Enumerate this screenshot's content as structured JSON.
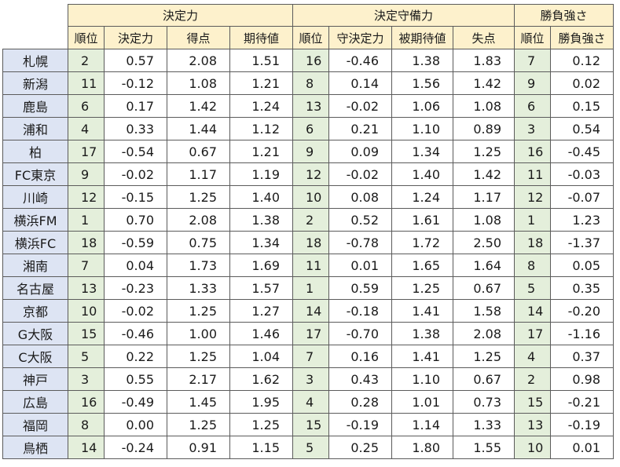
{
  "groups": {
    "finishing": "決定力",
    "defense": "決定守備力",
    "strength": "勝負強さ"
  },
  "subheaders": {
    "rank1": "順位",
    "finishing": "決定力",
    "goals": "得点",
    "expected": "期待値",
    "rank2": "順位",
    "def_finishing": "守決定力",
    "expected_against": "被期待値",
    "conceded": "失点",
    "rank3": "順位",
    "strength": "勝負強さ"
  },
  "rows": [
    {
      "team": "札幌",
      "r1": "2",
      "fin": "0.57",
      "goals": "2.08",
      "exp": "1.51",
      "r2": "16",
      "dfin": "-0.46",
      "xga": "1.38",
      "ga": "1.83",
      "r3": "7",
      "str": "0.12"
    },
    {
      "team": "新潟",
      "r1": "11",
      "fin": "-0.12",
      "goals": "1.08",
      "exp": "1.21",
      "r2": "8",
      "dfin": "0.14",
      "xga": "1.56",
      "ga": "1.42",
      "r3": "9",
      "str": "0.02"
    },
    {
      "team": "鹿島",
      "r1": "6",
      "fin": "0.17",
      "goals": "1.42",
      "exp": "1.24",
      "r2": "13",
      "dfin": "-0.02",
      "xga": "1.06",
      "ga": "1.08",
      "r3": "6",
      "str": "0.15"
    },
    {
      "team": "浦和",
      "r1": "4",
      "fin": "0.33",
      "goals": "1.44",
      "exp": "1.12",
      "r2": "6",
      "dfin": "0.21",
      "xga": "1.10",
      "ga": "0.89",
      "r3": "3",
      "str": "0.54"
    },
    {
      "team": "柏",
      "r1": "17",
      "fin": "-0.54",
      "goals": "0.67",
      "exp": "1.21",
      "r2": "9",
      "dfin": "0.09",
      "xga": "1.34",
      "ga": "1.25",
      "r3": "16",
      "str": "-0.45"
    },
    {
      "team": "FC東京",
      "r1": "9",
      "fin": "-0.02",
      "goals": "1.17",
      "exp": "1.19",
      "r2": "12",
      "dfin": "-0.02",
      "xga": "1.40",
      "ga": "1.42",
      "r3": "11",
      "str": "-0.03"
    },
    {
      "team": "川崎",
      "r1": "12",
      "fin": "-0.15",
      "goals": "1.25",
      "exp": "1.40",
      "r2": "10",
      "dfin": "0.08",
      "xga": "1.24",
      "ga": "1.17",
      "r3": "12",
      "str": "-0.07"
    },
    {
      "team": "横浜FM",
      "r1": "1",
      "fin": "0.70",
      "goals": "2.08",
      "exp": "1.38",
      "r2": "2",
      "dfin": "0.52",
      "xga": "1.61",
      "ga": "1.08",
      "r3": "1",
      "str": "1.23"
    },
    {
      "team": "横浜FC",
      "r1": "18",
      "fin": "-0.59",
      "goals": "0.75",
      "exp": "1.34",
      "r2": "18",
      "dfin": "-0.78",
      "xga": "1.72",
      "ga": "2.50",
      "r3": "18",
      "str": "-1.37"
    },
    {
      "team": "湘南",
      "r1": "7",
      "fin": "0.04",
      "goals": "1.73",
      "exp": "1.69",
      "r2": "11",
      "dfin": "0.01",
      "xga": "1.65",
      "ga": "1.64",
      "r3": "8",
      "str": "0.05"
    },
    {
      "team": "名古屋",
      "r1": "13",
      "fin": "-0.23",
      "goals": "1.33",
      "exp": "1.57",
      "r2": "1",
      "dfin": "0.59",
      "xga": "1.25",
      "ga": "0.67",
      "r3": "5",
      "str": "0.35"
    },
    {
      "team": "京都",
      "r1": "10",
      "fin": "-0.02",
      "goals": "1.25",
      "exp": "1.27",
      "r2": "14",
      "dfin": "-0.18",
      "xga": "1.41",
      "ga": "1.58",
      "r3": "14",
      "str": "-0.20"
    },
    {
      "team": "G大阪",
      "r1": "15",
      "fin": "-0.46",
      "goals": "1.00",
      "exp": "1.46",
      "r2": "17",
      "dfin": "-0.70",
      "xga": "1.38",
      "ga": "2.08",
      "r3": "17",
      "str": "-1.16"
    },
    {
      "team": "C大阪",
      "r1": "5",
      "fin": "0.22",
      "goals": "1.25",
      "exp": "1.04",
      "r2": "7",
      "dfin": "0.16",
      "xga": "1.41",
      "ga": "1.25",
      "r3": "4",
      "str": "0.37"
    },
    {
      "team": "神戸",
      "r1": "3",
      "fin": "0.55",
      "goals": "2.17",
      "exp": "1.62",
      "r2": "3",
      "dfin": "0.43",
      "xga": "1.10",
      "ga": "0.67",
      "r3": "2",
      "str": "0.98"
    },
    {
      "team": "広島",
      "r1": "16",
      "fin": "-0.49",
      "goals": "1.45",
      "exp": "1.95",
      "r2": "4",
      "dfin": "0.28",
      "xga": "1.01",
      "ga": "0.73",
      "r3": "15",
      "str": "-0.21"
    },
    {
      "team": "福岡",
      "r1": "8",
      "fin": "0.00",
      "goals": "1.25",
      "exp": "1.25",
      "r2": "15",
      "dfin": "-0.19",
      "xga": "1.14",
      "ga": "1.33",
      "r3": "13",
      "str": "-0.19"
    },
    {
      "team": "鳥栖",
      "r1": "14",
      "fin": "-0.24",
      "goals": "0.91",
      "exp": "1.15",
      "r2": "5",
      "dfin": "0.25",
      "xga": "1.80",
      "ga": "1.55",
      "r3": "10",
      "str": "0.01"
    }
  ],
  "colors": {
    "header_bg": "#fdf1cc",
    "team_bg": "#dde4f3",
    "rank_bg": "#e4efdb",
    "border": "#5b5b5b"
  }
}
